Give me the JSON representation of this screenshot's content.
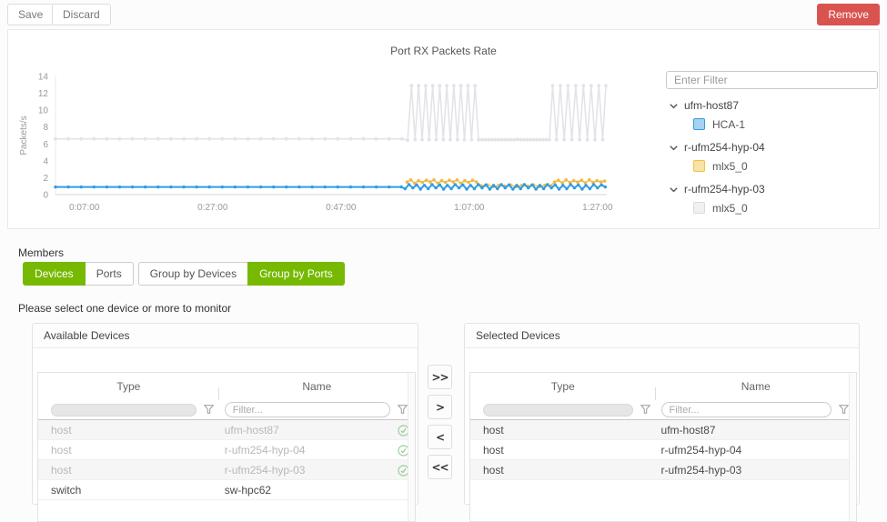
{
  "toolbar": {
    "save": "Save",
    "discard": "Discard",
    "remove": "Remove"
  },
  "chart_data": {
    "type": "line",
    "title": "Port RX Packets Rate",
    "ylabel": "Packets/s",
    "ylim": [
      0,
      14
    ],
    "yticks": [
      0,
      2,
      4,
      6,
      8,
      10,
      12,
      14
    ],
    "xlim": [
      2.5,
      88.3
    ],
    "xticks": [
      {
        "t": 7,
        "label": "0:07:00"
      },
      {
        "t": 27,
        "label": "0:27:00"
      },
      {
        "t": 47,
        "label": "0:47:00"
      },
      {
        "t": 67,
        "label": "1:07:00"
      },
      {
        "t": 87,
        "label": "1:27:00"
      }
    ],
    "grid": false,
    "legend_position": "right-tree",
    "series": [
      {
        "name": "r-ufm254-hyp-03 mlx5_0",
        "color": "#e2e2e8",
        "width": 1.5,
        "marker": 1.9,
        "points": [
          [
            2.5,
            6.6
          ],
          [
            4.5,
            6.6
          ],
          [
            6.5,
            6.6
          ],
          [
            8.5,
            6.6
          ],
          [
            10.5,
            6.6
          ],
          [
            12.5,
            6.6
          ],
          [
            14.5,
            6.6
          ],
          [
            16.5,
            6.6
          ],
          [
            18.5,
            6.6
          ],
          [
            20.5,
            6.6
          ],
          [
            22.5,
            6.6
          ],
          [
            24.5,
            6.6
          ],
          [
            26.5,
            6.6
          ],
          [
            28.5,
            6.6
          ],
          [
            30.5,
            6.6
          ],
          [
            32.5,
            6.6
          ],
          [
            34.5,
            6.6
          ],
          [
            36.5,
            6.6
          ],
          [
            38.5,
            6.6
          ],
          [
            40.5,
            6.6
          ],
          [
            42.5,
            6.6
          ],
          [
            44.5,
            6.6
          ],
          [
            46.5,
            6.6
          ],
          [
            48.5,
            6.6
          ],
          [
            50.5,
            6.6
          ],
          [
            52.5,
            6.6
          ],
          [
            54.5,
            6.6
          ],
          [
            56.5,
            6.6
          ],
          [
            57.4,
            6.45
          ],
          [
            58,
            12.9
          ],
          [
            58.55,
            6.5
          ],
          [
            59.1,
            12.9
          ],
          [
            59.65,
            6.5
          ],
          [
            60.2,
            12.9
          ],
          [
            60.75,
            6.5
          ],
          [
            61.3,
            12.9
          ],
          [
            61.85,
            6.5
          ],
          [
            62.4,
            12.9
          ],
          [
            62.95,
            6.5
          ],
          [
            63.5,
            12.9
          ],
          [
            64.05,
            6.5
          ],
          [
            64.6,
            12.9
          ],
          [
            65.15,
            6.5
          ],
          [
            65.7,
            12.9
          ],
          [
            66.25,
            6.5
          ],
          [
            66.8,
            12.9
          ],
          [
            67.35,
            6.5
          ],
          [
            67.9,
            12.9
          ],
          [
            68.45,
            6.5
          ],
          [
            69,
            6.5
          ],
          [
            69.5,
            6.5
          ],
          [
            70,
            6.5
          ],
          [
            70.5,
            6.5
          ],
          [
            71,
            6.5
          ],
          [
            71.5,
            6.5
          ],
          [
            72,
            6.5
          ],
          [
            72.5,
            6.5
          ],
          [
            73,
            6.5
          ],
          [
            73.5,
            6.5
          ],
          [
            74,
            6.5
          ],
          [
            74.5,
            6.55
          ],
          [
            75,
            6.5
          ],
          [
            75.5,
            6.5
          ],
          [
            76,
            6.5
          ],
          [
            76.5,
            6.5
          ],
          [
            77,
            6.5
          ],
          [
            77.5,
            6.5
          ],
          [
            78,
            6.5
          ],
          [
            78.5,
            6.5
          ],
          [
            79,
            6.5
          ],
          [
            79.5,
            6.5
          ],
          [
            80,
            12.9
          ],
          [
            80.6,
            6.5
          ],
          [
            81.2,
            12.9
          ],
          [
            81.8,
            6.5
          ],
          [
            82.4,
            12.9
          ],
          [
            83,
            6.5
          ],
          [
            83.6,
            12.9
          ],
          [
            84.2,
            6.5
          ],
          [
            84.8,
            12.9
          ],
          [
            85.4,
            6.5
          ],
          [
            86,
            12.9
          ],
          [
            86.6,
            6.5
          ],
          [
            87.2,
            12.9
          ],
          [
            87.8,
            6.5
          ],
          [
            88.3,
            12.9
          ]
        ]
      },
      {
        "name": "r-ufm254-hyp-04 mlx5_0",
        "color": "#f2b843",
        "width": 1.4,
        "marker": 1.8,
        "points": [
          [
            57.3,
            1.5
          ],
          [
            57.9,
            1.75
          ],
          [
            58.5,
            1.35
          ],
          [
            59.1,
            1.65
          ],
          [
            59.7,
            1.45
          ],
          [
            60.3,
            1.7
          ],
          [
            60.9,
            1.5
          ],
          [
            61.5,
            1.75
          ],
          [
            62.1,
            1.35
          ],
          [
            62.7,
            1.65
          ],
          [
            63.3,
            1.45
          ],
          [
            63.9,
            1.7
          ],
          [
            64.5,
            1.5
          ],
          [
            65.1,
            1.75
          ],
          [
            65.7,
            1.35
          ],
          [
            66.3,
            1.65
          ],
          [
            66.9,
            1.45
          ],
          [
            67.5,
            1.7
          ],
          [
            68.1,
            1.5
          ],
          [
            68.9,
            1.05
          ],
          [
            69.8,
            1.15
          ],
          [
            70.7,
            0.95
          ],
          [
            71.6,
            1.1
          ],
          [
            72.5,
            1.0
          ],
          [
            73.4,
            1.15
          ],
          [
            74.3,
            0.95
          ],
          [
            75.2,
            1.1
          ],
          [
            76.1,
            1.0
          ],
          [
            77.0,
            1.15
          ],
          [
            77.9,
            0.95
          ],
          [
            78.8,
            1.1
          ],
          [
            79.7,
            1.05
          ],
          [
            80.3,
            1.5
          ],
          [
            80.9,
            1.7
          ],
          [
            81.5,
            1.4
          ],
          [
            82.1,
            1.75
          ],
          [
            82.7,
            1.45
          ],
          [
            83.3,
            1.65
          ],
          [
            83.9,
            1.5
          ],
          [
            84.5,
            1.7
          ],
          [
            85.1,
            1.4
          ],
          [
            85.7,
            1.75
          ],
          [
            86.3,
            1.45
          ],
          [
            86.9,
            1.65
          ],
          [
            87.5,
            1.5
          ],
          [
            88.1,
            1.6
          ]
        ]
      },
      {
        "name": "ufm-host87 HCA-1",
        "color": "#2f9de2",
        "width": 2,
        "marker": 1.7,
        "points": [
          [
            2.5,
            0.9
          ],
          [
            4.5,
            0.9
          ],
          [
            6.5,
            0.9
          ],
          [
            8.5,
            0.9
          ],
          [
            10.5,
            0.9
          ],
          [
            12.5,
            0.9
          ],
          [
            14.5,
            0.9
          ],
          [
            16.5,
            0.9
          ],
          [
            18.5,
            0.9
          ],
          [
            20.5,
            0.9
          ],
          [
            22.5,
            0.9
          ],
          [
            24.5,
            0.9
          ],
          [
            26.5,
            0.9
          ],
          [
            28.5,
            0.9
          ],
          [
            30.5,
            0.9
          ],
          [
            32.5,
            0.9
          ],
          [
            34.5,
            0.9
          ],
          [
            36.5,
            0.9
          ],
          [
            38.5,
            0.9
          ],
          [
            40.5,
            0.9
          ],
          [
            42.5,
            0.9
          ],
          [
            44.5,
            0.9
          ],
          [
            46.5,
            0.9
          ],
          [
            48.5,
            0.9
          ],
          [
            50.5,
            0.9
          ],
          [
            52.5,
            0.9
          ],
          [
            54.5,
            0.9
          ],
          [
            56.4,
            0.9
          ],
          [
            57,
            0.7
          ],
          [
            57.6,
            1.2
          ],
          [
            58.2,
            0.8
          ],
          [
            58.8,
            1.15
          ],
          [
            59.4,
            0.65
          ],
          [
            60,
            1.1
          ],
          [
            60.6,
            0.7
          ],
          [
            61.2,
            1.2
          ],
          [
            61.8,
            0.8
          ],
          [
            62.4,
            1.15
          ],
          [
            63,
            0.65
          ],
          [
            63.6,
            1.1
          ],
          [
            64.2,
            0.7
          ],
          [
            64.8,
            1.2
          ],
          [
            65.4,
            0.8
          ],
          [
            66,
            1.15
          ],
          [
            66.6,
            0.65
          ],
          [
            67.2,
            1.1
          ],
          [
            67.8,
            0.7
          ],
          [
            68.4,
            1.2
          ],
          [
            69,
            0.8
          ],
          [
            69.6,
            1.15
          ],
          [
            70.2,
            0.65
          ],
          [
            70.8,
            1.1
          ],
          [
            71.4,
            0.7
          ],
          [
            72,
            1.2
          ],
          [
            72.6,
            0.8
          ],
          [
            73.2,
            1.15
          ],
          [
            73.8,
            0.65
          ],
          [
            74.4,
            1.1
          ],
          [
            75,
            0.7
          ],
          [
            75.6,
            1.2
          ],
          [
            76.2,
            0.8
          ],
          [
            76.8,
            1.15
          ],
          [
            77.4,
            0.65
          ],
          [
            78,
            1.1
          ],
          [
            78.6,
            0.7
          ],
          [
            79.2,
            1.2
          ],
          [
            79.8,
            0.8
          ],
          [
            80.4,
            1.15
          ],
          [
            81,
            0.65
          ],
          [
            81.6,
            1.1
          ],
          [
            82.2,
            0.7
          ],
          [
            82.8,
            1.2
          ],
          [
            83.4,
            0.8
          ],
          [
            84,
            1.15
          ],
          [
            84.6,
            0.65
          ],
          [
            85.2,
            1.1
          ],
          [
            85.8,
            0.7
          ],
          [
            86.4,
            1.2
          ],
          [
            87,
            0.8
          ],
          [
            87.6,
            1.15
          ],
          [
            88.2,
            0.9
          ]
        ]
      }
    ]
  },
  "legend": {
    "filter_placeholder": "Enter Filter",
    "groups": [
      {
        "label": "ufm-host87",
        "children": [
          {
            "label": "HCA-1",
            "border": "#2f9de2",
            "fill": "#a6d2f1"
          }
        ]
      },
      {
        "label": "r-ufm254-hyp-04",
        "children": [
          {
            "label": "mlx5_0",
            "border": "#f0c04a",
            "fill": "#f8e3a6"
          }
        ]
      },
      {
        "label": "r-ufm254-hyp-03",
        "children": [
          {
            "label": "mlx5_0",
            "border": "#d9d9df",
            "fill": "#f1f1f4"
          }
        ]
      }
    ]
  },
  "members": {
    "label": "Members",
    "hint": "Please select one device or more to monitor",
    "groups": [
      {
        "buttons": [
          {
            "label": "Devices",
            "active": true
          },
          {
            "label": "Ports",
            "active": false
          }
        ]
      },
      {
        "buttons": [
          {
            "label": "Group by Devices",
            "active": false
          },
          {
            "label": "Group by Ports",
            "active": true
          }
        ]
      }
    ]
  },
  "available": {
    "title": "Available Devices",
    "columns": [
      "Type",
      "Name"
    ],
    "filter_placeholder": "Filter...",
    "rows": [
      {
        "type": "host",
        "name": "ufm-host87",
        "disabled": true,
        "checked": true
      },
      {
        "type": "host",
        "name": "r-ufm254-hyp-04",
        "disabled": true,
        "checked": true
      },
      {
        "type": "host",
        "name": "r-ufm254-hyp-03",
        "disabled": true,
        "checked": true
      },
      {
        "type": "switch",
        "name": "sw-hpc62",
        "disabled": false,
        "checked": false
      }
    ]
  },
  "selected": {
    "title": "Selected Devices",
    "columns": [
      "Type",
      "Name"
    ],
    "filter_placeholder": "Filter...",
    "rows": [
      {
        "type": "host",
        "name": "ufm-host87",
        "disabled": false,
        "checked": false
      },
      {
        "type": "host",
        "name": "r-ufm254-hyp-04",
        "disabled": false,
        "checked": false
      },
      {
        "type": "host",
        "name": "r-ufm254-hyp-03",
        "disabled": false,
        "checked": false
      }
    ]
  },
  "transfer": {
    "buttons": [
      ">>",
      ">",
      "<",
      "<<"
    ]
  }
}
